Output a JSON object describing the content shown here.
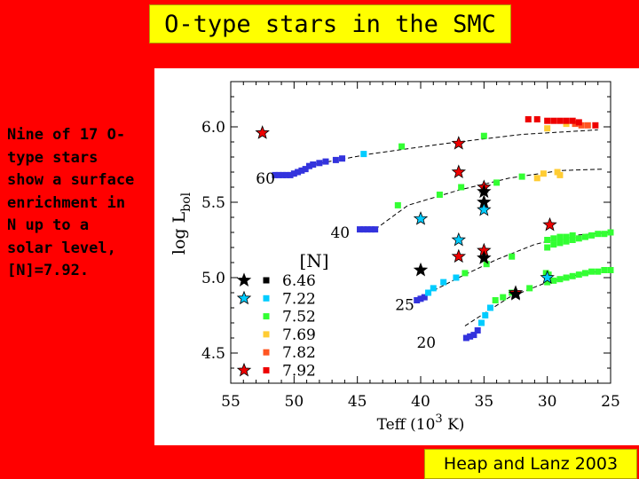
{
  "title": "O-type stars in the SMC",
  "side_text": "Nine of 17 O-type stars show a surface enrichment in N up to a solar level, [N]=7.92.",
  "citation": "Heap and Lanz 2003",
  "colors": {
    "background": "#ff0000",
    "title_box": "#ffff00",
    "n_6_46": "#000000",
    "n_7_22": "#00ccff",
    "n_7_52": "#33ff33",
    "n_7_69": "#ffcc33",
    "n_7_82": "#ff5522",
    "n_7_92": "#ee0000",
    "track": "#3333dd"
  },
  "chart_data": {
    "type": "scatter",
    "title": "",
    "xlabel": "Teff",
    "xlabel_unit": "(10",
    "xlabel_exp": "3",
    "xlabel_unit_end": " K)",
    "ylabel": "log L",
    "ylabel_sub": "bol",
    "xlim": [
      55,
      25
    ],
    "ylim": [
      4.3,
      6.3
    ],
    "xticks": [
      "55",
      "50",
      "45",
      "40",
      "35",
      "30",
      "25"
    ],
    "yticks": [
      "4.5",
      "5.0",
      "5.5",
      "6.0"
    ],
    "legend": {
      "title": "[N]",
      "entries": [
        {
          "label": "6.46",
          "color": "#000000"
        },
        {
          "label": "7.22",
          "color": "#00ccff"
        },
        {
          "label": "7.52",
          "color": "#33ff33"
        },
        {
          "label": "7.69",
          "color": "#ffcc33"
        },
        {
          "label": "7.82",
          "color": "#ff5522"
        },
        {
          "label": "7.92",
          "color": "#ee0000"
        }
      ]
    },
    "track_labels": [
      {
        "text": "60",
        "x": 51.5,
        "y": 5.66
      },
      {
        "text": "40",
        "x": 45.6,
        "y": 5.3
      },
      {
        "text": "25",
        "x": 40.5,
        "y": 4.82
      },
      {
        "text": "20",
        "x": 38.8,
        "y": 4.57
      }
    ],
    "tracks": [
      {
        "name": "60",
        "dashed": [
          [
            48.5,
            5.75
          ],
          [
            44,
            5.82
          ],
          [
            38,
            5.89
          ],
          [
            32,
            5.95
          ],
          [
            26,
            5.98
          ]
        ],
        "points": [
          {
            "x": 51.5,
            "y": 5.68,
            "c": "#3333dd"
          },
          {
            "x": 51.2,
            "y": 5.68,
            "c": "#3333dd"
          },
          {
            "x": 50.9,
            "y": 5.68,
            "c": "#3333dd"
          },
          {
            "x": 50.6,
            "y": 5.68,
            "c": "#3333dd"
          },
          {
            "x": 50.3,
            "y": 5.68,
            "c": "#3333dd"
          },
          {
            "x": 50.0,
            "y": 5.69,
            "c": "#3333dd"
          },
          {
            "x": 49.7,
            "y": 5.7,
            "c": "#3333dd"
          },
          {
            "x": 49.4,
            "y": 5.71,
            "c": "#3333dd"
          },
          {
            "x": 49.1,
            "y": 5.72,
            "c": "#3333dd"
          },
          {
            "x": 48.8,
            "y": 5.74,
            "c": "#3333dd"
          },
          {
            "x": 48.5,
            "y": 5.75,
            "c": "#3333dd"
          },
          {
            "x": 48.0,
            "y": 5.76,
            "c": "#3333dd"
          },
          {
            "x": 47.5,
            "y": 5.77,
            "c": "#3333dd"
          },
          {
            "x": 46.7,
            "y": 5.78,
            "c": "#3333dd"
          },
          {
            "x": 46.2,
            "y": 5.79,
            "c": "#3333dd"
          },
          {
            "x": 44.5,
            "y": 5.82,
            "c": "#00ccff"
          },
          {
            "x": 41.5,
            "y": 5.87,
            "c": "#33ff33"
          },
          {
            "x": 35.0,
            "y": 5.94,
            "c": "#33ff33"
          },
          {
            "x": 30.0,
            "y": 5.99,
            "c": "#ffcc33"
          },
          {
            "x": 28.5,
            "y": 6.02,
            "c": "#ffcc33"
          },
          {
            "x": 27.8,
            "y": 6.02,
            "c": "#ff5522"
          },
          {
            "x": 27.3,
            "y": 6.01,
            "c": "#ff5522"
          },
          {
            "x": 26.8,
            "y": 6.01,
            "c": "#ff5522"
          },
          {
            "x": 26.2,
            "y": 6.01,
            "c": "#ee0000"
          },
          {
            "x": 31.5,
            "y": 6.05,
            "c": "#ee0000"
          },
          {
            "x": 30.8,
            "y": 6.05,
            "c": "#ee0000"
          },
          {
            "x": 30.0,
            "y": 6.04,
            "c": "#ee0000"
          },
          {
            "x": 29.5,
            "y": 6.04,
            "c": "#ee0000"
          },
          {
            "x": 29.0,
            "y": 6.04,
            "c": "#ee0000"
          },
          {
            "x": 28.5,
            "y": 6.04,
            "c": "#ee0000"
          },
          {
            "x": 28.0,
            "y": 6.04,
            "c": "#ee0000"
          },
          {
            "x": 27.5,
            "y": 6.03,
            "c": "#ee0000"
          }
        ]
      },
      {
        "name": "40",
        "dashed": [
          [
            43.6,
            5.32
          ],
          [
            41,
            5.48
          ],
          [
            37,
            5.58
          ],
          [
            33,
            5.66
          ],
          [
            29,
            5.71
          ],
          [
            25.5,
            5.72
          ]
        ],
        "points": [
          {
            "x": 44.8,
            "y": 5.32,
            "c": "#3333dd"
          },
          {
            "x": 44.5,
            "y": 5.32,
            "c": "#3333dd"
          },
          {
            "x": 44.2,
            "y": 5.32,
            "c": "#3333dd"
          },
          {
            "x": 43.9,
            "y": 5.32,
            "c": "#3333dd"
          },
          {
            "x": 43.6,
            "y": 5.32,
            "c": "#3333dd"
          },
          {
            "x": 41.8,
            "y": 5.48,
            "c": "#33ff33"
          },
          {
            "x": 38.5,
            "y": 5.55,
            "c": "#33ff33"
          },
          {
            "x": 36.8,
            "y": 5.6,
            "c": "#33ff33"
          },
          {
            "x": 34.0,
            "y": 5.63,
            "c": "#33ff33"
          },
          {
            "x": 32.0,
            "y": 5.67,
            "c": "#33ff33"
          },
          {
            "x": 30.8,
            "y": 5.66,
            "c": "#ffcc33"
          },
          {
            "x": 30.3,
            "y": 5.69,
            "c": "#ffcc33"
          },
          {
            "x": 29.2,
            "y": 5.7,
            "c": "#ffcc33"
          },
          {
            "x": 29.0,
            "y": 5.68,
            "c": "#ffcc33"
          }
        ]
      },
      {
        "name": "25",
        "dashed": [
          [
            40.0,
            4.87
          ],
          [
            37,
            5.0
          ],
          [
            34,
            5.12
          ],
          [
            31,
            5.22
          ],
          [
            28,
            5.28
          ],
          [
            25,
            5.3
          ]
        ],
        "points": [
          {
            "x": 40.3,
            "y": 4.85,
            "c": "#3333dd"
          },
          {
            "x": 40.0,
            "y": 4.86,
            "c": "#3333dd"
          },
          {
            "x": 39.7,
            "y": 4.87,
            "c": "#3333dd"
          },
          {
            "x": 39.4,
            "y": 4.9,
            "c": "#00ccff"
          },
          {
            "x": 39.0,
            "y": 4.93,
            "c": "#00ccff"
          },
          {
            "x": 38.2,
            "y": 4.97,
            "c": "#00ccff"
          },
          {
            "x": 37.2,
            "y": 5.0,
            "c": "#00ccff"
          },
          {
            "x": 36.5,
            "y": 5.03,
            "c": "#33ff33"
          },
          {
            "x": 34.8,
            "y": 5.09,
            "c": "#33ff33"
          },
          {
            "x": 32.8,
            "y": 5.14,
            "c": "#33ff33"
          },
          {
            "x": 30.0,
            "y": 5.2,
            "c": "#33ff33"
          },
          {
            "x": 29.5,
            "y": 5.22,
            "c": "#33ff33"
          },
          {
            "x": 29.0,
            "y": 5.23,
            "c": "#33ff33"
          },
          {
            "x": 28.5,
            "y": 5.24,
            "c": "#33ff33"
          },
          {
            "x": 28.0,
            "y": 5.25,
            "c": "#33ff33"
          },
          {
            "x": 27.5,
            "y": 5.26,
            "c": "#33ff33"
          },
          {
            "x": 27.0,
            "y": 5.27,
            "c": "#33ff33"
          },
          {
            "x": 26.5,
            "y": 5.28,
            "c": "#33ff33"
          },
          {
            "x": 26.0,
            "y": 5.29,
            "c": "#33ff33"
          },
          {
            "x": 25.5,
            "y": 5.29,
            "c": "#33ff33"
          },
          {
            "x": 25.0,
            "y": 5.3,
            "c": "#33ff33"
          },
          {
            "x": 30.0,
            "y": 5.25,
            "c": "#33ff33"
          },
          {
            "x": 29.5,
            "y": 5.26,
            "c": "#33ff33"
          },
          {
            "x": 29.0,
            "y": 5.27,
            "c": "#33ff33"
          },
          {
            "x": 28.5,
            "y": 5.27,
            "c": "#33ff33"
          },
          {
            "x": 28.0,
            "y": 5.28,
            "c": "#33ff33"
          }
        ]
      },
      {
        "name": "20",
        "dashed": [
          [
            36.5,
            4.68
          ],
          [
            33,
            4.87
          ],
          [
            30,
            4.97
          ],
          [
            27,
            5.03
          ],
          [
            25,
            5.05
          ]
        ],
        "points": [
          {
            "x": 36.4,
            "y": 4.6,
            "c": "#3333dd"
          },
          {
            "x": 36.1,
            "y": 4.61,
            "c": "#3333dd"
          },
          {
            "x": 35.8,
            "y": 4.62,
            "c": "#3333dd"
          },
          {
            "x": 35.5,
            "y": 4.65,
            "c": "#3333dd"
          },
          {
            "x": 35.2,
            "y": 4.7,
            "c": "#00ccff"
          },
          {
            "x": 34.9,
            "y": 4.75,
            "c": "#00ccff"
          },
          {
            "x": 34.5,
            "y": 4.8,
            "c": "#00ccff"
          },
          {
            "x": 34.1,
            "y": 4.85,
            "c": "#33ff33"
          },
          {
            "x": 33.5,
            "y": 4.87,
            "c": "#33ff33"
          },
          {
            "x": 32.8,
            "y": 4.9,
            "c": "#33ff33"
          },
          {
            "x": 31.4,
            "y": 4.93,
            "c": "#33ff33"
          },
          {
            "x": 30.0,
            "y": 4.97,
            "c": "#33ff33"
          },
          {
            "x": 29.5,
            "y": 4.98,
            "c": "#33ff33"
          },
          {
            "x": 29.0,
            "y": 4.99,
            "c": "#33ff33"
          },
          {
            "x": 28.5,
            "y": 5.0,
            "c": "#33ff33"
          },
          {
            "x": 28.0,
            "y": 5.01,
            "c": "#33ff33"
          },
          {
            "x": 27.5,
            "y": 5.02,
            "c": "#33ff33"
          },
          {
            "x": 27.0,
            "y": 5.03,
            "c": "#33ff33"
          },
          {
            "x": 26.5,
            "y": 5.04,
            "c": "#33ff33"
          },
          {
            "x": 26.0,
            "y": 5.04,
            "c": "#33ff33"
          },
          {
            "x": 25.5,
            "y": 5.05,
            "c": "#33ff33"
          },
          {
            "x": 25.0,
            "y": 5.05,
            "c": "#33ff33"
          },
          {
            "x": 29.9,
            "y": 5.02,
            "c": "#33ff33"
          },
          {
            "x": 30.1,
            "y": 5.03,
            "c": "#33ff33"
          }
        ]
      }
    ],
    "stars": [
      {
        "teff": 52.5,
        "logL": 5.96,
        "color": "#ee0000"
      },
      {
        "teff": 37.0,
        "logL": 5.89,
        "color": "#ee0000"
      },
      {
        "teff": 37.0,
        "logL": 5.7,
        "color": "#ee0000"
      },
      {
        "teff": 35.0,
        "logL": 5.6,
        "color": "#ee0000"
      },
      {
        "teff": 35.0,
        "logL": 5.57,
        "color": "#000000"
      },
      {
        "teff": 35.0,
        "logL": 5.5,
        "color": "#000000"
      },
      {
        "teff": 35.0,
        "logL": 5.45,
        "color": "#00ccff"
      },
      {
        "teff": 40.0,
        "logL": 5.39,
        "color": "#00ccff"
      },
      {
        "teff": 29.8,
        "logL": 5.35,
        "color": "#ee0000"
      },
      {
        "teff": 37.0,
        "logL": 5.25,
        "color": "#00ccff"
      },
      {
        "teff": 35.0,
        "logL": 5.18,
        "color": "#ee0000"
      },
      {
        "teff": 35.0,
        "logL": 5.13,
        "color": "#000000"
      },
      {
        "teff": 37.0,
        "logL": 5.14,
        "color": "#ee0000"
      },
      {
        "teff": 40.0,
        "logL": 5.05,
        "color": "#000000"
      },
      {
        "teff": 30.0,
        "logL": 5.0,
        "color": "#00ccff"
      },
      {
        "teff": 32.5,
        "logL": 4.9,
        "color": "#ee0000"
      },
      {
        "teff": 32.5,
        "logL": 4.89,
        "color": "#000000"
      }
    ]
  }
}
